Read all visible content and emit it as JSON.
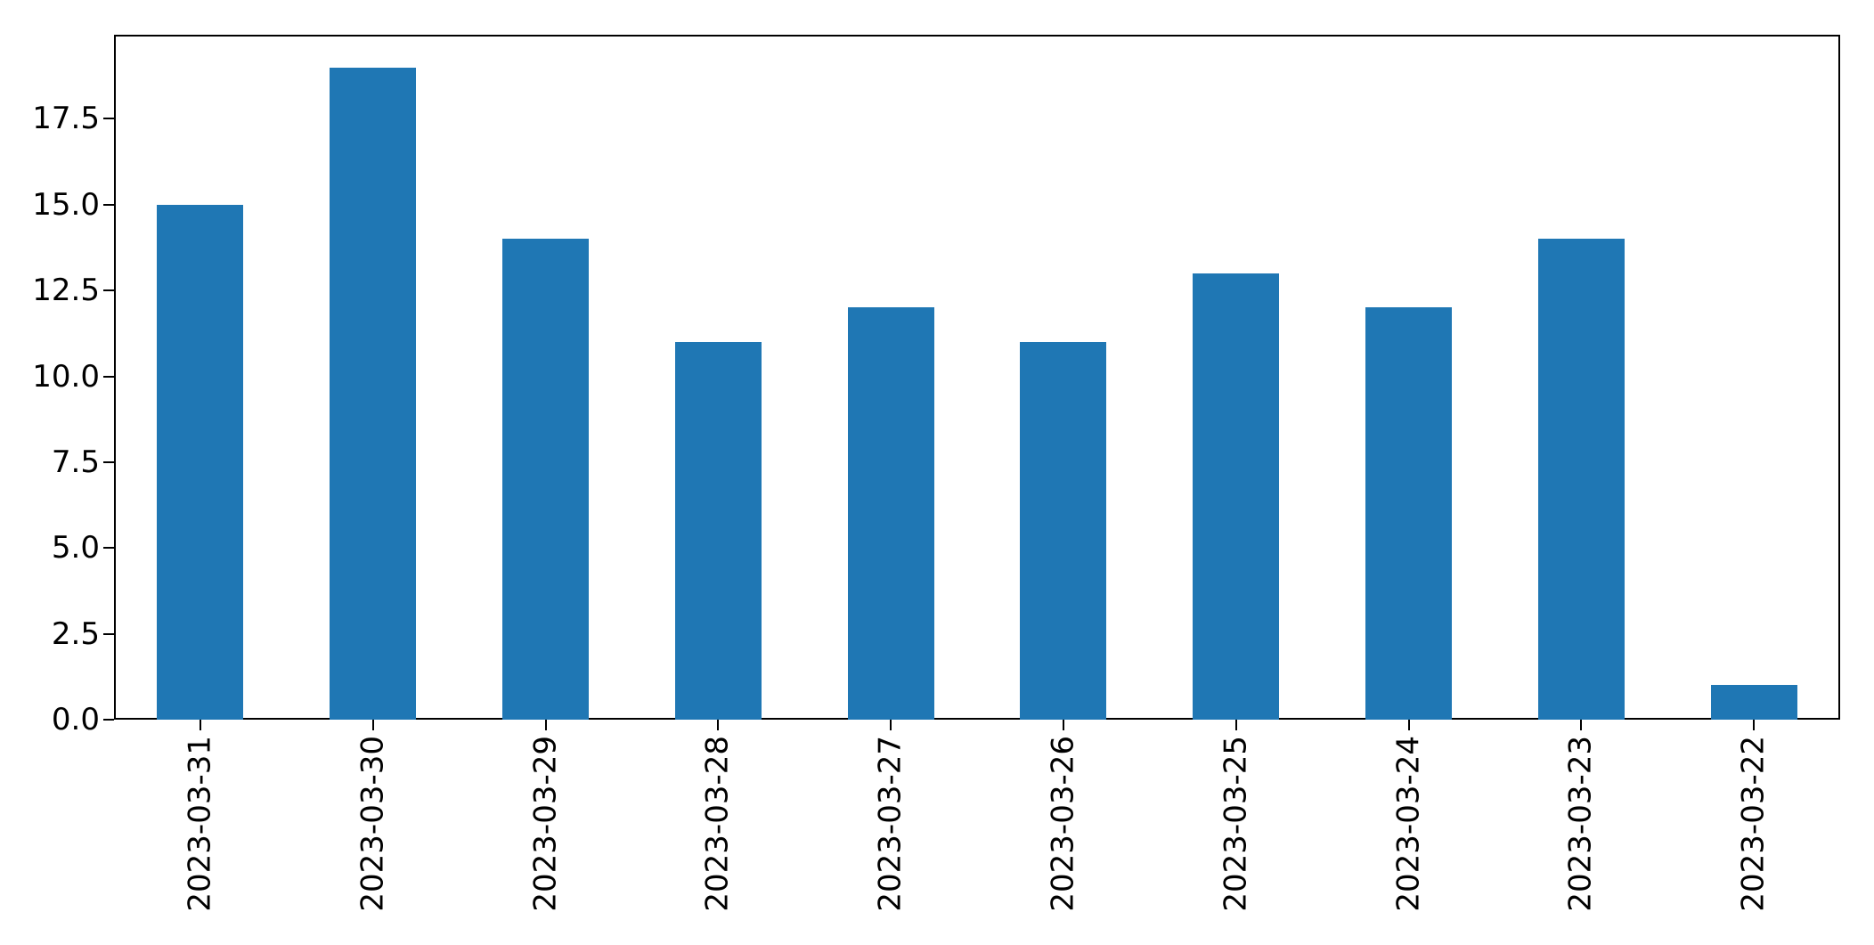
{
  "chart_data": {
    "type": "bar",
    "title": "",
    "xlabel": "",
    "ylabel": "",
    "categories": [
      "2023-03-31",
      "2023-03-30",
      "2023-03-29",
      "2023-03-28",
      "2023-03-27",
      "2023-03-26",
      "2023-03-25",
      "2023-03-24",
      "2023-03-23",
      "2023-03-22"
    ],
    "values": [
      15,
      19,
      14,
      11,
      12,
      11,
      13,
      12,
      14,
      1
    ],
    "ylim": [
      0,
      19.95
    ],
    "ytick_labels": [
      "0.0",
      "2.5",
      "5.0",
      "7.5",
      "10.0",
      "12.5",
      "15.0",
      "17.5"
    ],
    "x_tick_rotation": 90,
    "grid": false,
    "legend_position": "none",
    "bar_color": "#1f77b4",
    "axis_color": "#000000",
    "bar_width_fraction": 0.5
  }
}
